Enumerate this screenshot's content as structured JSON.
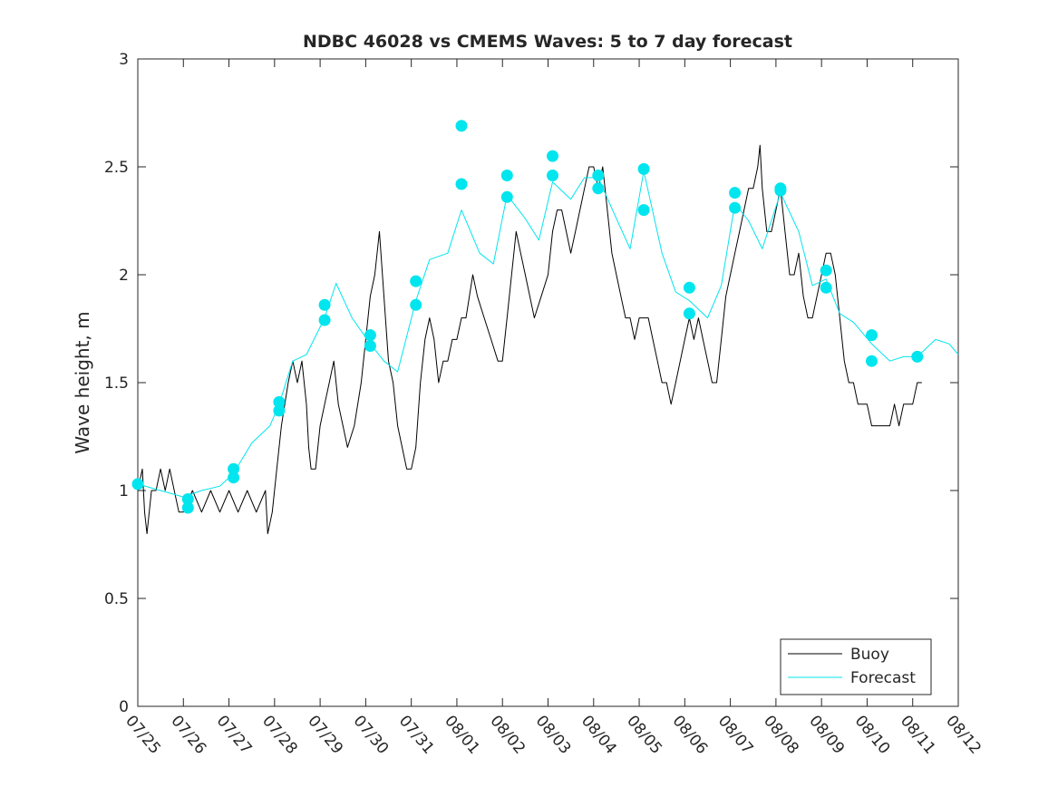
{
  "chart_data": {
    "type": "line",
    "title": "NDBC 46028 vs CMEMS Waves: 5 to 7 day forecast",
    "xlabel": "",
    "ylabel": "Wave height, m",
    "x_tick_labels": [
      "07/25",
      "07/26",
      "07/27",
      "07/28",
      "07/29",
      "07/30",
      "07/31",
      "08/01",
      "08/02",
      "08/03",
      "08/04",
      "08/05",
      "08/06",
      "08/07",
      "08/08",
      "08/09",
      "08/10",
      "08/11",
      "08/12"
    ],
    "xlim": [
      "07/25",
      "08/12"
    ],
    "ylim": [
      0,
      3
    ],
    "y_ticks": [
      "0",
      "0.5",
      "1",
      "1.5",
      "2",
      "2.5",
      "3"
    ],
    "grid": false,
    "legend_position": "bottom-right",
    "colors": {
      "buoy": "#000000",
      "forecast": "#00e5ee"
    },
    "series": [
      {
        "name": "Buoy",
        "x_unit": "days since 07/25",
        "points": [
          [
            0.0,
            1.0
          ],
          [
            0.1,
            1.1
          ],
          [
            0.15,
            0.9
          ],
          [
            0.2,
            0.8
          ],
          [
            0.3,
            1.0
          ],
          [
            0.4,
            1.0
          ],
          [
            0.5,
            1.1
          ],
          [
            0.6,
            1.0
          ],
          [
            0.7,
            1.1
          ],
          [
            0.8,
            1.0
          ],
          [
            0.9,
            0.9
          ],
          [
            1.0,
            0.9
          ],
          [
            1.2,
            1.0
          ],
          [
            1.4,
            0.9
          ],
          [
            1.6,
            1.0
          ],
          [
            1.8,
            0.9
          ],
          [
            2.0,
            1.0
          ],
          [
            2.2,
            0.9
          ],
          [
            2.4,
            1.0
          ],
          [
            2.6,
            0.9
          ],
          [
            2.8,
            1.0
          ],
          [
            2.85,
            0.8
          ],
          [
            2.95,
            0.9
          ],
          [
            3.05,
            1.1
          ],
          [
            3.15,
            1.3
          ],
          [
            3.3,
            1.5
          ],
          [
            3.4,
            1.6
          ],
          [
            3.5,
            1.5
          ],
          [
            3.6,
            1.6
          ],
          [
            3.7,
            1.4
          ],
          [
            3.75,
            1.2
          ],
          [
            3.8,
            1.1
          ],
          [
            3.9,
            1.1
          ],
          [
            4.0,
            1.3
          ],
          [
            4.1,
            1.4
          ],
          [
            4.2,
            1.5
          ],
          [
            4.3,
            1.6
          ],
          [
            4.4,
            1.4
          ],
          [
            4.5,
            1.3
          ],
          [
            4.6,
            1.2
          ],
          [
            4.75,
            1.3
          ],
          [
            4.9,
            1.5
          ],
          [
            5.0,
            1.7
          ],
          [
            5.1,
            1.9
          ],
          [
            5.2,
            2.0
          ],
          [
            5.3,
            2.2
          ],
          [
            5.4,
            1.9
          ],
          [
            5.5,
            1.6
          ],
          [
            5.6,
            1.5
          ],
          [
            5.7,
            1.3
          ],
          [
            5.8,
            1.2
          ],
          [
            5.9,
            1.1
          ],
          [
            6.0,
            1.1
          ],
          [
            6.1,
            1.2
          ],
          [
            6.2,
            1.5
          ],
          [
            6.3,
            1.7
          ],
          [
            6.4,
            1.8
          ],
          [
            6.5,
            1.7
          ],
          [
            6.6,
            1.5
          ],
          [
            6.7,
            1.6
          ],
          [
            6.8,
            1.6
          ],
          [
            6.9,
            1.7
          ],
          [
            7.0,
            1.7
          ],
          [
            7.1,
            1.8
          ],
          [
            7.2,
            1.8
          ],
          [
            7.35,
            2.0
          ],
          [
            7.45,
            1.9
          ],
          [
            7.6,
            1.8
          ],
          [
            7.75,
            1.7
          ],
          [
            7.9,
            1.6
          ],
          [
            8.0,
            1.6
          ],
          [
            8.1,
            1.8
          ],
          [
            8.2,
            2.0
          ],
          [
            8.3,
            2.2
          ],
          [
            8.4,
            2.1
          ],
          [
            8.5,
            2.0
          ],
          [
            8.6,
            1.9
          ],
          [
            8.7,
            1.8
          ],
          [
            8.85,
            1.9
          ],
          [
            9.0,
            2.0
          ],
          [
            9.1,
            2.2
          ],
          [
            9.2,
            2.3
          ],
          [
            9.3,
            2.3
          ],
          [
            9.4,
            2.2
          ],
          [
            9.5,
            2.1
          ],
          [
            9.6,
            2.2
          ],
          [
            9.7,
            2.3
          ],
          [
            9.8,
            2.4
          ],
          [
            9.9,
            2.5
          ],
          [
            10.0,
            2.5
          ],
          [
            10.1,
            2.4
          ],
          [
            10.2,
            2.5
          ],
          [
            10.3,
            2.3
          ],
          [
            10.4,
            2.1
          ],
          [
            10.5,
            2.0
          ],
          [
            10.6,
            1.9
          ],
          [
            10.7,
            1.8
          ],
          [
            10.8,
            1.8
          ],
          [
            10.9,
            1.7
          ],
          [
            11.0,
            1.8
          ],
          [
            11.1,
            1.8
          ],
          [
            11.2,
            1.8
          ],
          [
            11.3,
            1.7
          ],
          [
            11.4,
            1.6
          ],
          [
            11.5,
            1.5
          ],
          [
            11.6,
            1.5
          ],
          [
            11.7,
            1.4
          ],
          [
            11.8,
            1.5
          ],
          [
            11.9,
            1.6
          ],
          [
            12.0,
            1.7
          ],
          [
            12.1,
            1.8
          ],
          [
            12.2,
            1.7
          ],
          [
            12.3,
            1.8
          ],
          [
            12.4,
            1.7
          ],
          [
            12.5,
            1.6
          ],
          [
            12.6,
            1.5
          ],
          [
            12.7,
            1.5
          ],
          [
            12.8,
            1.7
          ],
          [
            12.9,
            1.9
          ],
          [
            13.0,
            2.0
          ],
          [
            13.1,
            2.1
          ],
          [
            13.2,
            2.2
          ],
          [
            13.3,
            2.3
          ],
          [
            13.4,
            2.4
          ],
          [
            13.5,
            2.4
          ],
          [
            13.6,
            2.5
          ],
          [
            13.65,
            2.6
          ],
          [
            13.7,
            2.4
          ],
          [
            13.8,
            2.2
          ],
          [
            13.9,
            2.2
          ],
          [
            14.0,
            2.3
          ],
          [
            14.1,
            2.4
          ],
          [
            14.2,
            2.2
          ],
          [
            14.3,
            2.0
          ],
          [
            14.4,
            2.0
          ],
          [
            14.5,
            2.1
          ],
          [
            14.6,
            1.9
          ],
          [
            14.7,
            1.8
          ],
          [
            14.8,
            1.8
          ],
          [
            14.9,
            1.9
          ],
          [
            15.0,
            2.0
          ],
          [
            15.1,
            2.1
          ],
          [
            15.2,
            2.1
          ],
          [
            15.3,
            2.0
          ],
          [
            15.4,
            1.8
          ],
          [
            15.5,
            1.6
          ],
          [
            15.6,
            1.5
          ],
          [
            15.7,
            1.5
          ],
          [
            15.8,
            1.4
          ],
          [
            15.9,
            1.4
          ],
          [
            16.0,
            1.4
          ],
          [
            16.1,
            1.3
          ],
          [
            16.2,
            1.3
          ],
          [
            16.3,
            1.3
          ],
          [
            16.4,
            1.3
          ],
          [
            16.5,
            1.3
          ],
          [
            16.6,
            1.4
          ],
          [
            16.7,
            1.3
          ],
          [
            16.8,
            1.4
          ],
          [
            16.9,
            1.4
          ],
          [
            17.0,
            1.4
          ],
          [
            17.1,
            1.5
          ],
          [
            17.2,
            1.5
          ]
        ]
      },
      {
        "name": "Forecast",
        "x_unit": "days since 07/25",
        "points": [
          [
            0.0,
            1.03
          ],
          [
            0.5,
            1.0
          ],
          [
            1.0,
            0.97
          ],
          [
            1.4,
            1.0
          ],
          [
            1.8,
            1.02
          ],
          [
            2.1,
            1.08
          ],
          [
            2.5,
            1.22
          ],
          [
            2.9,
            1.3
          ],
          [
            3.1,
            1.4
          ],
          [
            3.4,
            1.6
          ],
          [
            3.7,
            1.63
          ],
          [
            4.1,
            1.8
          ],
          [
            4.35,
            1.96
          ],
          [
            4.7,
            1.8
          ],
          [
            5.1,
            1.68
          ],
          [
            5.4,
            1.6
          ],
          [
            5.7,
            1.55
          ],
          [
            6.1,
            1.88
          ],
          [
            6.4,
            2.07
          ],
          [
            6.8,
            2.1
          ],
          [
            7.1,
            2.3
          ],
          [
            7.5,
            2.1
          ],
          [
            7.8,
            2.05
          ],
          [
            8.1,
            2.37
          ],
          [
            8.5,
            2.26
          ],
          [
            8.8,
            2.16
          ],
          [
            9.1,
            2.43
          ],
          [
            9.5,
            2.35
          ],
          [
            9.8,
            2.45
          ],
          [
            10.1,
            2.45
          ],
          [
            10.5,
            2.26
          ],
          [
            10.8,
            2.12
          ],
          [
            11.1,
            2.48
          ],
          [
            11.5,
            2.1
          ],
          [
            11.8,
            1.92
          ],
          [
            12.1,
            1.88
          ],
          [
            12.5,
            1.8
          ],
          [
            12.8,
            1.95
          ],
          [
            13.1,
            2.33
          ],
          [
            13.4,
            2.25
          ],
          [
            13.7,
            2.12
          ],
          [
            14.1,
            2.38
          ],
          [
            14.5,
            2.2
          ],
          [
            14.8,
            1.95
          ],
          [
            15.1,
            1.98
          ],
          [
            15.4,
            1.82
          ],
          [
            15.7,
            1.78
          ],
          [
            16.1,
            1.68
          ],
          [
            16.5,
            1.6
          ],
          [
            16.8,
            1.62
          ],
          [
            17.1,
            1.62
          ],
          [
            17.5,
            1.7
          ],
          [
            17.8,
            1.68
          ],
          [
            18.0,
            1.63
          ]
        ]
      }
    ],
    "forecast_markers": [
      [
        0.0,
        1.03
      ],
      [
        1.1,
        0.92
      ],
      [
        1.1,
        0.96
      ],
      [
        2.1,
        1.06
      ],
      [
        2.1,
        1.1
      ],
      [
        3.1,
        1.37
      ],
      [
        3.1,
        1.41
      ],
      [
        4.1,
        1.79
      ],
      [
        4.1,
        1.86
      ],
      [
        5.1,
        1.67
      ],
      [
        5.1,
        1.72
      ],
      [
        6.1,
        1.86
      ],
      [
        6.1,
        1.97
      ],
      [
        7.1,
        2.42
      ],
      [
        7.1,
        2.69
      ],
      [
        8.1,
        2.36
      ],
      [
        8.1,
        2.46
      ],
      [
        9.1,
        2.46
      ],
      [
        9.1,
        2.55
      ],
      [
        10.1,
        2.4
      ],
      [
        10.1,
        2.46
      ],
      [
        11.1,
        2.3
      ],
      [
        11.1,
        2.49
      ],
      [
        12.1,
        1.82
      ],
      [
        12.1,
        1.94
      ],
      [
        13.1,
        2.31
      ],
      [
        13.1,
        2.38
      ],
      [
        14.1,
        2.39
      ],
      [
        14.1,
        2.4
      ],
      [
        15.1,
        1.94
      ],
      [
        15.1,
        2.02
      ],
      [
        16.1,
        1.6
      ],
      [
        16.1,
        1.72
      ],
      [
        17.1,
        1.62
      ]
    ],
    "legend": [
      "Buoy",
      "Forecast"
    ]
  }
}
